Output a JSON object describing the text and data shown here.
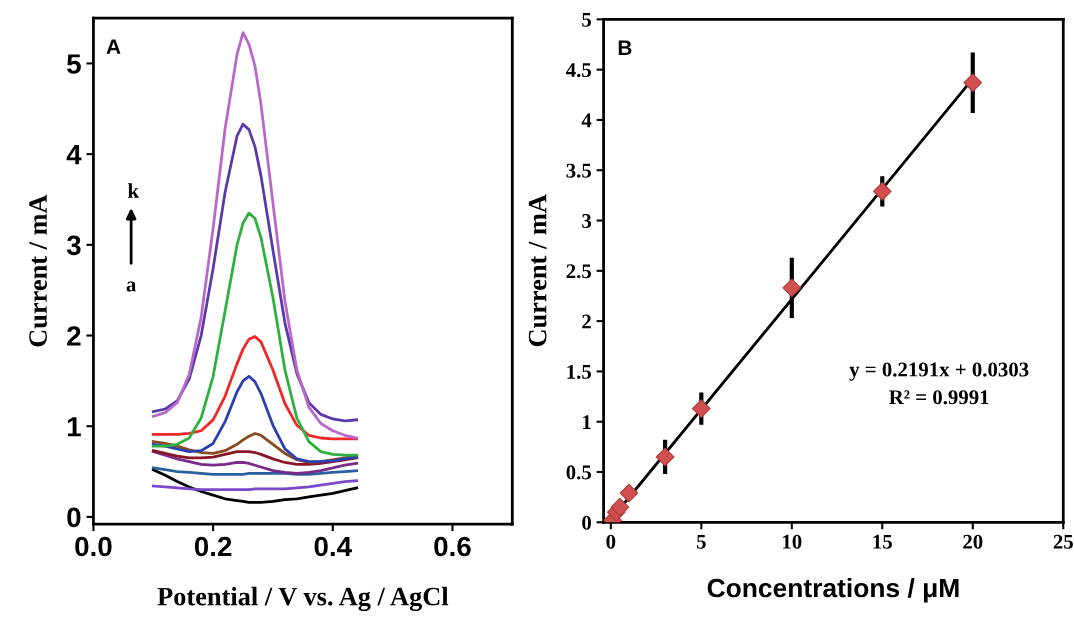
{
  "chart_data": [
    {
      "type": "line",
      "xlabel": "Potential / V vs. Ag / AgCl",
      "ylabel": "Current / mA",
      "annotations": [
        "A",
        "k",
        "a"
      ],
      "x": [
        0.1,
        0.12,
        0.14,
        0.16,
        0.18,
        0.2,
        0.22,
        0.24,
        0.25,
        0.26,
        0.27,
        0.28,
        0.3,
        0.32,
        0.34,
        0.36,
        0.38,
        0.4,
        0.42,
        0.44
      ],
      "xlim": [
        0,
        0.7
      ],
      "ylim": [
        -0.08,
        5.5
      ],
      "xticks": [
        {
          "value": 0,
          "label": "0.0"
        },
        {
          "value": 0.2,
          "label": "0.2"
        },
        {
          "value": 0.4,
          "label": "0.4"
        },
        {
          "value": 0.6,
          "label": "0.6"
        }
      ],
      "yticks": [
        0,
        1,
        2,
        3,
        4,
        5
      ],
      "grid": false,
      "legend": false,
      "line_style": "solid",
      "marker": "none",
      "series": [
        {
          "color": "#000000",
          "values": [
            0.52,
            0.46,
            0.39,
            0.33,
            0.28,
            0.24,
            0.2,
            0.18,
            0.17,
            0.16,
            0.16,
            0.16,
            0.17,
            0.19,
            0.2,
            0.22,
            0.24,
            0.26,
            0.29,
            0.32
          ]
        },
        {
          "color": "#7a48c8",
          "values": [
            0.34,
            0.33,
            0.32,
            0.31,
            0.3,
            0.3,
            0.3,
            0.3,
            0.3,
            0.3,
            0.31,
            0.31,
            0.31,
            0.31,
            0.32,
            0.33,
            0.35,
            0.37,
            0.39,
            0.4
          ]
        },
        {
          "color": "#2a5fa0",
          "values": [
            0.54,
            0.52,
            0.5,
            0.49,
            0.48,
            0.47,
            0.47,
            0.47,
            0.47,
            0.48,
            0.48,
            0.48,
            0.48,
            0.48,
            0.47,
            0.47,
            0.48,
            0.49,
            0.5,
            0.51
          ]
        },
        {
          "color": "#7a2a88",
          "values": [
            0.72,
            0.68,
            0.64,
            0.61,
            0.58,
            0.57,
            0.58,
            0.6,
            0.6,
            0.59,
            0.57,
            0.55,
            0.51,
            0.49,
            0.48,
            0.49,
            0.51,
            0.54,
            0.57,
            0.59
          ]
        },
        {
          "color": "#8a1428",
          "values": [
            0.73,
            0.7,
            0.67,
            0.65,
            0.65,
            0.66,
            0.69,
            0.72,
            0.72,
            0.72,
            0.71,
            0.69,
            0.64,
            0.6,
            0.58,
            0.58,
            0.59,
            0.61,
            0.63,
            0.65
          ]
        },
        {
          "color": "#8b4a1a",
          "values": [
            0.83,
            0.81,
            0.78,
            0.74,
            0.71,
            0.7,
            0.73,
            0.8,
            0.85,
            0.89,
            0.92,
            0.9,
            0.8,
            0.7,
            0.63,
            0.6,
            0.61,
            0.63,
            0.65,
            0.67
          ]
        },
        {
          "color": "#2c3fb0",
          "values": [
            0.8,
            0.78,
            0.75,
            0.72,
            0.73,
            0.81,
            1.05,
            1.38,
            1.5,
            1.55,
            1.49,
            1.36,
            1.01,
            0.75,
            0.64,
            0.61,
            0.61,
            0.62,
            0.64,
            0.66
          ]
        },
        {
          "color": "#f02828",
          "values": [
            0.91,
            0.91,
            0.91,
            0.92,
            0.95,
            1.07,
            1.33,
            1.69,
            1.85,
            1.96,
            1.99,
            1.93,
            1.62,
            1.25,
            1.01,
            0.9,
            0.87,
            0.86,
            0.86,
            0.86
          ]
        },
        {
          "color": "#30b040",
          "values": [
            0.78,
            0.78,
            0.8,
            0.87,
            1.09,
            1.55,
            2.27,
            3.0,
            3.24,
            3.35,
            3.29,
            3.08,
            2.42,
            1.62,
            1.09,
            0.83,
            0.72,
            0.69,
            0.68,
            0.68
          ]
        },
        {
          "color": "#5a3aa8",
          "values": [
            1.16,
            1.19,
            1.28,
            1.52,
            2.0,
            2.74,
            3.58,
            4.2,
            4.33,
            4.27,
            4.08,
            3.76,
            2.94,
            2.14,
            1.58,
            1.26,
            1.13,
            1.08,
            1.06,
            1.07
          ]
        },
        {
          "color": "#b868c8",
          "values": [
            1.11,
            1.15,
            1.26,
            1.57,
            2.2,
            3.18,
            4.28,
            5.1,
            5.34,
            5.21,
            4.97,
            4.55,
            3.46,
            2.38,
            1.62,
            1.21,
            1.03,
            0.95,
            0.9,
            0.87
          ]
        }
      ]
    },
    {
      "type": "scatter",
      "xlabel": "Concentrations / μM",
      "ylabel": "Current / mA",
      "annotations": [
        "B",
        "y = 0.2191x + 0.0303",
        "R² = 0.9991"
      ],
      "xlim": [
        -0.4,
        25
      ],
      "ylim": [
        0,
        5
      ],
      "xticks": [
        0,
        5,
        10,
        15,
        20,
        25
      ],
      "yticks": [
        0,
        0.5,
        1,
        1.5,
        2,
        2.5,
        3,
        3.5,
        4,
        4.5,
        5
      ],
      "grid": false,
      "legend": false,
      "marker": "diamond",
      "series": [
        {
          "type": "line",
          "color": "#000000",
          "x": [
            0.7,
            20
          ],
          "values": [
            0.18,
            4.41
          ],
          "marker": "none",
          "line_style": "solid"
        },
        {
          "type": "scatter",
          "color": "#d05050",
          "x": [
            0.1,
            0.3,
            0.5,
            1,
            3,
            5,
            10,
            15,
            20
          ],
          "values": [
            0.02,
            0.1,
            0.15,
            0.29,
            0.65,
            1.13,
            2.33,
            3.29,
            4.37
          ],
          "errors": [
            null,
            null,
            null,
            null,
            0.17,
            0.16,
            0.3,
            0.15,
            0.3
          ]
        }
      ]
    }
  ]
}
